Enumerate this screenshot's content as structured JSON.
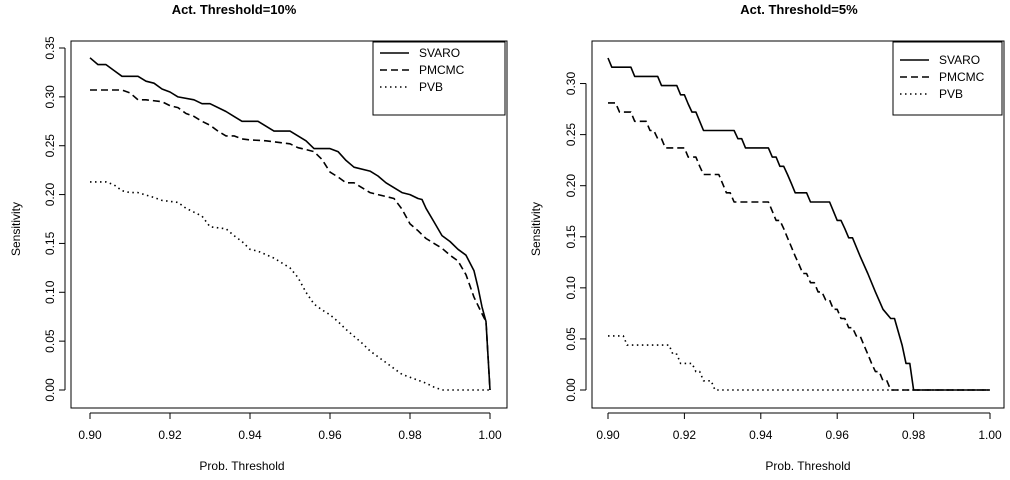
{
  "chart_data": [
    {
      "type": "line",
      "title": "Act. Threshold=10%",
      "xlabel": "Prob. Threshold",
      "ylabel": "Sensitivity",
      "xlim": [
        0.9,
        1.0
      ],
      "ylim": [
        0.0,
        0.35
      ],
      "xticks": [
        "0.90",
        "0.92",
        "0.94",
        "0.96",
        "0.98",
        "1.00"
      ],
      "yticks": [
        "0.00",
        "0.05",
        "0.10",
        "0.15",
        "0.20",
        "0.25",
        "0.30",
        "0.35"
      ],
      "grid": false,
      "legend": "top-right",
      "series": [
        {
          "name": "SVARO",
          "style": "solid",
          "x": [
            0.9,
            0.902,
            0.904,
            0.906,
            0.908,
            0.912,
            0.914,
            0.916,
            0.918,
            0.92,
            0.922,
            0.926,
            0.928,
            0.93,
            0.934,
            0.936,
            0.938,
            0.942,
            0.944,
            0.946,
            0.95,
            0.952,
            0.954,
            0.956,
            0.96,
            0.962,
            0.964,
            0.966,
            0.97,
            0.972,
            0.974,
            0.976,
            0.978,
            0.98,
            0.982,
            0.983,
            0.984,
            0.986,
            0.988,
            0.99,
            0.992,
            0.994,
            0.995,
            0.996,
            0.997,
            0.998,
            0.999,
            1.0
          ],
          "y": [
            0.34,
            0.333,
            0.333,
            0.327,
            0.321,
            0.321,
            0.316,
            0.314,
            0.308,
            0.305,
            0.3,
            0.297,
            0.293,
            0.293,
            0.285,
            0.28,
            0.275,
            0.275,
            0.27,
            0.265,
            0.265,
            0.26,
            0.255,
            0.247,
            0.247,
            0.244,
            0.235,
            0.228,
            0.224,
            0.219,
            0.212,
            0.207,
            0.202,
            0.2,
            0.196,
            0.195,
            0.186,
            0.172,
            0.158,
            0.152,
            0.144,
            0.138,
            0.13,
            0.122,
            0.105,
            0.085,
            0.07,
            0.0
          ]
        },
        {
          "name": "PMCMC",
          "style": "dashed",
          "x": [
            0.9,
            0.904,
            0.906,
            0.908,
            0.91,
            0.912,
            0.914,
            0.918,
            0.92,
            0.922,
            0.924,
            0.926,
            0.928,
            0.93,
            0.932,
            0.934,
            0.936,
            0.938,
            0.94,
            0.944,
            0.946,
            0.95,
            0.952,
            0.954,
            0.956,
            0.958,
            0.96,
            0.962,
            0.964,
            0.966,
            0.968,
            0.97,
            0.972,
            0.974,
            0.976,
            0.978,
            0.98,
            0.982,
            0.984,
            0.986,
            0.988,
            0.99,
            0.992,
            0.994,
            0.996,
            0.998,
            0.999,
            1.0
          ],
          "y": [
            0.307,
            0.307,
            0.307,
            0.307,
            0.304,
            0.297,
            0.297,
            0.295,
            0.291,
            0.289,
            0.283,
            0.28,
            0.275,
            0.271,
            0.265,
            0.26,
            0.26,
            0.257,
            0.256,
            0.255,
            0.254,
            0.252,
            0.248,
            0.246,
            0.244,
            0.236,
            0.223,
            0.218,
            0.212,
            0.212,
            0.207,
            0.202,
            0.2,
            0.198,
            0.196,
            0.185,
            0.17,
            0.163,
            0.155,
            0.15,
            0.145,
            0.138,
            0.132,
            0.118,
            0.095,
            0.078,
            0.07,
            0.0
          ]
        },
        {
          "name": "PVB",
          "style": "dotted",
          "x": [
            0.9,
            0.904,
            0.906,
            0.908,
            0.91,
            0.912,
            0.916,
            0.918,
            0.922,
            0.924,
            0.926,
            0.928,
            0.93,
            0.934,
            0.936,
            0.938,
            0.94,
            0.942,
            0.946,
            0.95,
            0.952,
            0.954,
            0.956,
            0.958,
            0.96,
            0.962,
            0.964,
            0.966,
            0.968,
            0.97,
            0.972,
            0.974,
            0.976,
            0.978,
            0.98,
            0.982,
            0.984,
            0.986,
            0.988,
            0.99,
            0.992,
            0.995,
            0.998,
            1.0
          ],
          "y": [
            0.213,
            0.213,
            0.21,
            0.204,
            0.202,
            0.202,
            0.197,
            0.194,
            0.192,
            0.186,
            0.182,
            0.178,
            0.167,
            0.165,
            0.158,
            0.152,
            0.144,
            0.142,
            0.135,
            0.125,
            0.115,
            0.1,
            0.088,
            0.082,
            0.077,
            0.07,
            0.062,
            0.055,
            0.048,
            0.04,
            0.034,
            0.028,
            0.022,
            0.016,
            0.013,
            0.01,
            0.007,
            0.003,
            0.0,
            0.0,
            0.0,
            0.0,
            0.0,
            0.0
          ]
        }
      ]
    },
    {
      "type": "line",
      "title": "Act. Threshold=5%",
      "xlabel": "Prob. Threshold",
      "ylabel": "Sensitivity",
      "xlim": [
        0.9,
        1.0
      ],
      "ylim": [
        0.0,
        0.325
      ],
      "xticks": [
        "0.90",
        "0.92",
        "0.94",
        "0.96",
        "0.98",
        "1.00"
      ],
      "yticks": [
        "0.00",
        "0.05",
        "0.10",
        "0.15",
        "0.20",
        "0.25",
        "0.30"
      ],
      "grid": false,
      "legend": "top-right",
      "series": [
        {
          "name": "SVARO",
          "style": "solid",
          "x": [
            0.9,
            0.901,
            0.906,
            0.907,
            0.913,
            0.914,
            0.918,
            0.919,
            0.92,
            0.921,
            0.922,
            0.923,
            0.924,
            0.925,
            0.926,
            0.933,
            0.934,
            0.935,
            0.936,
            0.937,
            0.942,
            0.943,
            0.944,
            0.945,
            0.946,
            0.947,
            0.948,
            0.949,
            0.95,
            0.952,
            0.953,
            0.958,
            0.959,
            0.96,
            0.961,
            0.962,
            0.963,
            0.964,
            0.966,
            0.968,
            0.97,
            0.972,
            0.974,
            0.975,
            0.977,
            0.978,
            0.979,
            0.98,
            1.0
          ],
          "y": [
            0.325,
            0.316,
            0.316,
            0.307,
            0.307,
            0.298,
            0.298,
            0.289,
            0.289,
            0.28,
            0.272,
            0.272,
            0.263,
            0.254,
            0.254,
            0.254,
            0.246,
            0.246,
            0.237,
            0.237,
            0.237,
            0.228,
            0.228,
            0.219,
            0.219,
            0.211,
            0.202,
            0.193,
            0.193,
            0.193,
            0.184,
            0.184,
            0.175,
            0.166,
            0.166,
            0.158,
            0.149,
            0.149,
            0.131,
            0.114,
            0.096,
            0.079,
            0.07,
            0.07,
            0.044,
            0.026,
            0.026,
            0.0,
            0.0
          ]
        },
        {
          "name": "PMCMC",
          "style": "dashed",
          "x": [
            0.9,
            0.902,
            0.903,
            0.906,
            0.907,
            0.91,
            0.911,
            0.912,
            0.913,
            0.914,
            0.915,
            0.916,
            0.917,
            0.92,
            0.921,
            0.922,
            0.923,
            0.924,
            0.925,
            0.926,
            0.929,
            0.93,
            0.931,
            0.932,
            0.933,
            0.934,
            0.935,
            0.942,
            0.943,
            0.944,
            0.945,
            0.946,
            0.947,
            0.948,
            0.949,
            0.95,
            0.951,
            0.952,
            0.953,
            0.954,
            0.955,
            0.956,
            0.957,
            0.958,
            0.959,
            0.96,
            0.961,
            0.962,
            0.963,
            0.964,
            0.965,
            0.966,
            0.967,
            0.968,
            0.969,
            0.97,
            0.971,
            0.972,
            0.973,
            0.974,
            0.975,
            0.976,
            0.977,
            1.0
          ],
          "y": [
            0.281,
            0.281,
            0.272,
            0.272,
            0.263,
            0.263,
            0.254,
            0.254,
            0.246,
            0.246,
            0.237,
            0.237,
            0.237,
            0.237,
            0.228,
            0.228,
            0.228,
            0.219,
            0.211,
            0.211,
            0.211,
            0.202,
            0.193,
            0.193,
            0.184,
            0.184,
            0.184,
            0.184,
            0.175,
            0.166,
            0.166,
            0.158,
            0.149,
            0.14,
            0.131,
            0.123,
            0.114,
            0.114,
            0.105,
            0.105,
            0.096,
            0.096,
            0.088,
            0.088,
            0.079,
            0.079,
            0.07,
            0.07,
            0.061,
            0.061,
            0.053,
            0.053,
            0.044,
            0.035,
            0.026,
            0.018,
            0.018,
            0.009,
            0.009,
            0.0,
            0.0,
            0.0,
            0.0,
            0.0
          ]
        },
        {
          "name": "PVB",
          "style": "dotted",
          "x": [
            0.9,
            0.904,
            0.905,
            0.914,
            0.915,
            0.916,
            0.917,
            0.918,
            0.919,
            0.92,
            0.921,
            0.922,
            0.923,
            0.924,
            0.925,
            0.926,
            0.927,
            0.928,
            1.0
          ],
          "y": [
            0.053,
            0.053,
            0.044,
            0.044,
            0.044,
            0.044,
            0.035,
            0.035,
            0.026,
            0.026,
            0.026,
            0.026,
            0.018,
            0.018,
            0.009,
            0.009,
            0.009,
            0.0,
            0.0
          ]
        }
      ]
    }
  ]
}
